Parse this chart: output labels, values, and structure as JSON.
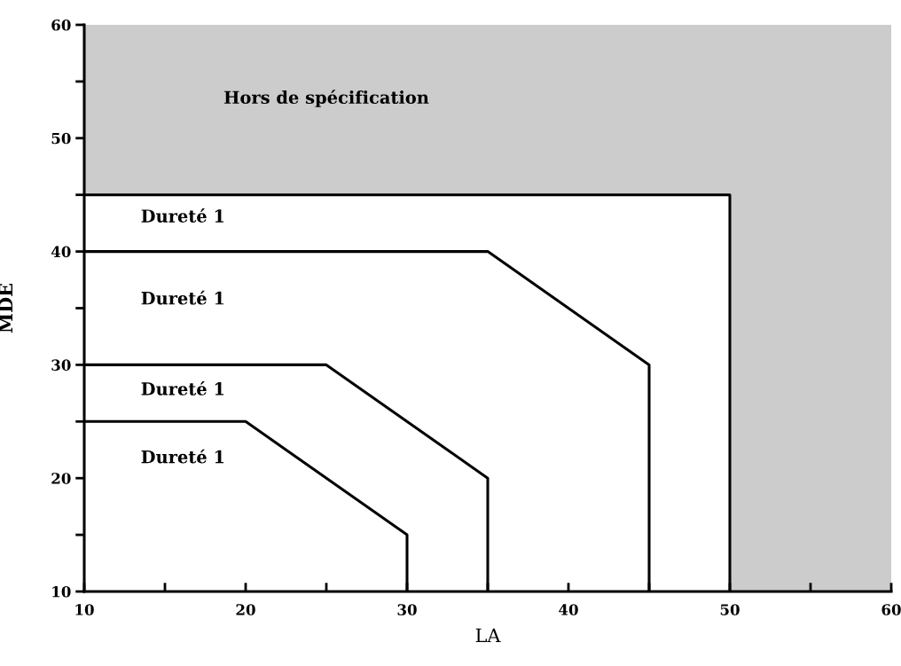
{
  "chart_data": {
    "type": "line",
    "xlabel": "LA",
    "ylabel": "MDE",
    "xlim": [
      10,
      60
    ],
    "ylim": [
      10,
      60
    ],
    "xticks": [
      10,
      {
        "value": 15,
        "label": null
      },
      20,
      {
        "value": 25,
        "label": null
      },
      30,
      {
        "value": 35,
        "label": null
      },
      40,
      {
        "value": 45,
        "label": null
      },
      50,
      {
        "value": 55,
        "label": null
      },
      60
    ],
    "yticks": [
      10,
      {
        "value": 15,
        "label": null
      },
      20,
      {
        "value": 25,
        "label": null
      },
      30,
      {
        "value": 35,
        "label": null
      },
      40,
      {
        "value": 45,
        "label": null
      },
      50,
      {
        "value": 55,
        "label": null
      },
      60
    ],
    "series": [
      {
        "color": "#000000",
        "x": [
          10,
          20,
          30,
          30
        ],
        "values": [
          25,
          25,
          15,
          10
        ]
      },
      {
        "color": "#000000",
        "x": [
          10,
          25,
          35,
          35
        ],
        "values": [
          30,
          30,
          20,
          10
        ]
      },
      {
        "color": "#000000",
        "x": [
          10,
          35,
          45,
          45
        ],
        "values": [
          40,
          40,
          30,
          10
        ]
      },
      {
        "color": "#000000",
        "x": [
          10,
          50,
          50
        ],
        "values": [
          45,
          45,
          10
        ]
      }
    ],
    "bands": [
      {
        "axis": "y",
        "from": 45,
        "to": 60,
        "color": "#cccccc",
        "label": "Hors de spécification"
      },
      {
        "axis": "x",
        "from": 50,
        "to": 60,
        "color": "#cccccc"
      }
    ],
    "annotations": [
      "Dureté 1",
      "Dureté 1",
      "Dureté 1",
      "Dureté 1"
    ],
    "grid": false,
    "legend": false,
    "marker": "none",
    "line_style": "solid"
  }
}
